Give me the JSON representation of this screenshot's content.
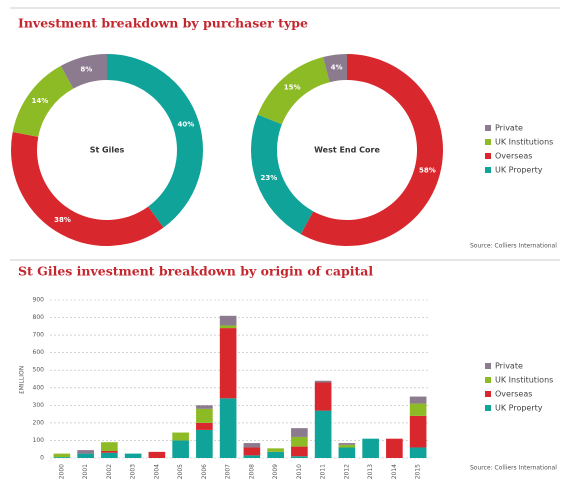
{
  "chart_data": [
    {
      "type": "donut",
      "title": "Investment breakdown by purchaser type",
      "center_label": "St Giles",
      "values": [
        40,
        38,
        14,
        8
      ],
      "value_labels": [
        "40%",
        "38%",
        "14%",
        "8%"
      ],
      "colors": [
        "#0fa39a",
        "#d9272e",
        "#8dbb25",
        "#8c7a8e"
      ]
    },
    {
      "type": "donut",
      "center_label": "West End Core",
      "values": [
        58,
        23,
        15,
        4
      ],
      "value_labels": [
        "58%",
        "23%",
        "15%",
        "4%"
      ],
      "colors": [
        "#d9272e",
        "#0fa39a",
        "#8dbb25",
        "#8c7a8e"
      ],
      "legend": [
        {
          "name": "Private",
          "color": "#8c7a8e"
        },
        {
          "name": "UK Institutions",
          "color": "#8dbb25"
        },
        {
          "name": "Overseas",
          "color": "#d9272e"
        },
        {
          "name": "UK Property",
          "color": "#0fa39a"
        }
      ],
      "source": "Source: Colliers International"
    },
    {
      "type": "stacked_bar",
      "title": "St Giles investment breakdown by origin of capital",
      "ylabel": "£MILLION",
      "source": "Source: Colliers International",
      "categories": [
        "2000",
        "2001",
        "2002",
        "2003",
        "2004",
        "2005",
        "2006",
        "2007",
        "2008",
        "2009",
        "2010",
        "2011",
        "2012",
        "2013",
        "2014",
        "2015"
      ],
      "series": [
        {
          "name": "UK Property",
          "color": "#0fa39a",
          "values": [
            5,
            25,
            30,
            25,
            0,
            100,
            160,
            340,
            15,
            35,
            10,
            270,
            60,
            110,
            0,
            60
          ]
        },
        {
          "name": "Overseas",
          "color": "#d9272e",
          "values": [
            0,
            0,
            10,
            0,
            35,
            0,
            40,
            400,
            45,
            0,
            55,
            160,
            0,
            0,
            110,
            180
          ]
        },
        {
          "name": "UK Institutions",
          "color": "#8dbb25",
          "values": [
            20,
            0,
            50,
            0,
            0,
            45,
            80,
            15,
            0,
            20,
            55,
            0,
            15,
            0,
            0,
            70
          ]
        },
        {
          "name": "Private",
          "color": "#8c7a8e",
          "values": [
            0,
            20,
            0,
            0,
            0,
            0,
            20,
            55,
            25,
            0,
            50,
            10,
            10,
            0,
            0,
            40
          ]
        }
      ],
      "legend_order": [
        "Private",
        "UK Institutions",
        "Overseas",
        "UK Property"
      ],
      "ylim": [
        0,
        900
      ],
      "yticks": [
        0,
        100,
        200,
        300,
        400,
        500,
        600,
        700,
        800,
        900
      ],
      "grid": true
    }
  ]
}
